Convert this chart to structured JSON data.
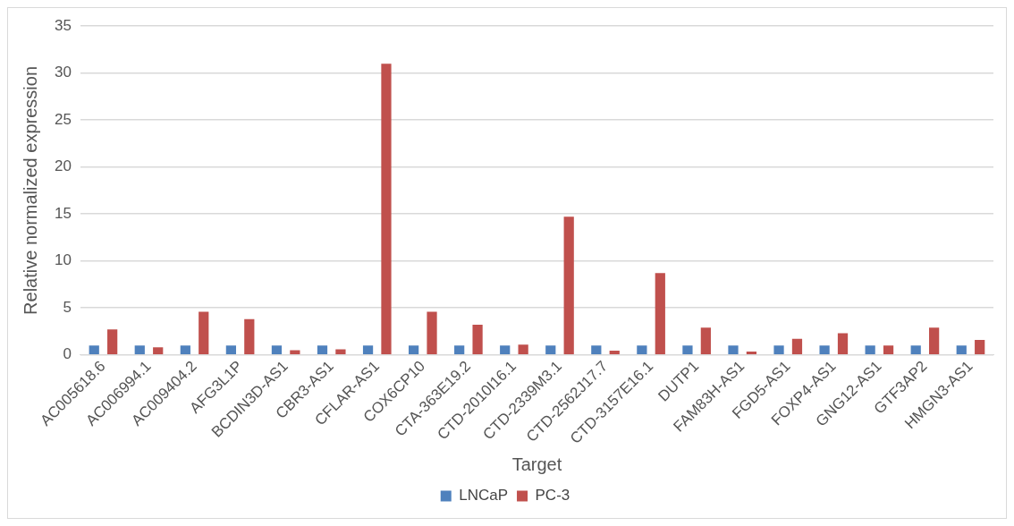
{
  "chart_data": {
    "type": "bar",
    "xlabel": "Target",
    "ylabel": "Relative normalized expression",
    "categories": [
      "AC005618.6",
      "AC006994.1",
      "AC009404.2",
      "AFG3L1P",
      "BCDIN3D-AS1",
      "CBR3-AS1",
      "CFLAR-AS1",
      "COX6CP10",
      "CTA-363E19.2",
      "CTD-2010I16.1",
      "CTD-2339M3.1",
      "CTD-2562J17.7",
      "CTD-3157E16.1",
      "DUTP1",
      "FAM83H-AS1",
      "FGD5-AS1",
      "FOXP4-AS1",
      "GNG12-AS1",
      "GTF3AP2",
      "HMGN3-AS1"
    ],
    "series": [
      {
        "name": "LNCaP",
        "color": "#4f81bd",
        "values": [
          1,
          1,
          1,
          1,
          1,
          1,
          1,
          1,
          1,
          1,
          1,
          1,
          1,
          1,
          1,
          1,
          1,
          1,
          1,
          1
        ]
      },
      {
        "name": "PC-3",
        "color": "#c0504d",
        "values": [
          2.7,
          0.8,
          4.6,
          3.8,
          0.5,
          0.6,
          31,
          4.6,
          3.2,
          1.1,
          14.7,
          0.45,
          8.7,
          2.9,
          0.35,
          1.7,
          2.3,
          1.0,
          2.9,
          1.6
        ]
      }
    ],
    "ylim": [
      0,
      35
    ],
    "yticks": [
      0,
      5,
      10,
      15,
      20,
      25,
      30,
      35
    ],
    "grid": "y",
    "legend": "bottom"
  }
}
